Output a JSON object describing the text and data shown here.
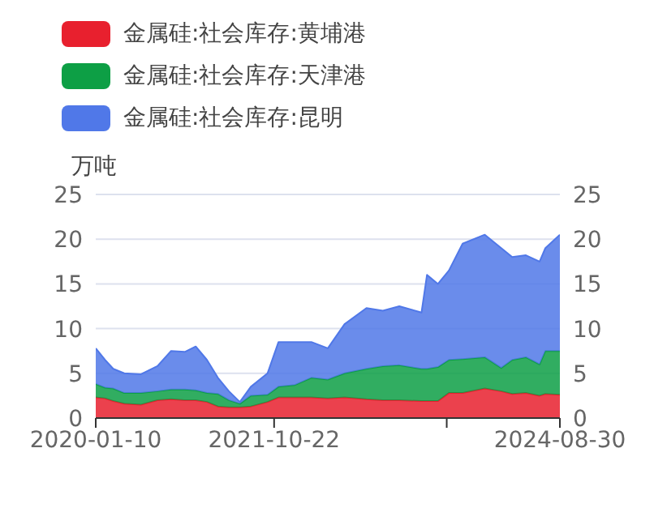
{
  "chart_data": {
    "type": "area",
    "stacked": true,
    "ylabel": "万吨",
    "x": [
      "2020-01-10",
      "2020-02-13",
      "2020-03-14",
      "2020-04-23",
      "2020-06-23",
      "2020-08-22",
      "2020-10-11",
      "2020-11-30",
      "2021-01-09",
      "2021-02-19",
      "2021-03-31",
      "2021-05-10",
      "2021-06-19",
      "2021-07-29",
      "2021-09-28",
      "2021-11-07",
      "2022-01-06",
      "2022-03-07",
      "2022-05-06",
      "2022-07-06",
      "2022-09-24",
      "2022-11-23",
      "2023-01-22",
      "2023-04-13",
      "2023-05-03",
      "2023-06-12",
      "2023-07-22",
      "2023-09-10",
      "2023-11-30",
      "2024-01-29",
      "2024-03-09",
      "2024-04-28",
      "2024-06-17",
      "2024-07-08",
      "2024-08-30"
    ],
    "series": [
      {
        "name": "金属硅:社会库存:黄埔港",
        "color": "#e8202e",
        "values": [
          2.3,
          2.2,
          1.9,
          1.6,
          1.5,
          2.0,
          2.1,
          2.0,
          2.0,
          1.8,
          1.3,
          1.2,
          1.2,
          1.3,
          1.8,
          2.3,
          2.3,
          2.3,
          2.2,
          2.3,
          2.1,
          2.0,
          2.0,
          1.9,
          1.9,
          1.9,
          2.8,
          2.8,
          3.3,
          3.0,
          2.7,
          2.8,
          2.5,
          2.7,
          2.6
        ]
      },
      {
        "name": "金属硅:社会库存:天津港",
        "color": "#0d9f45",
        "values": [
          1.5,
          1.2,
          1.4,
          1.2,
          1.3,
          1.0,
          1.1,
          1.2,
          1.1,
          1.0,
          1.4,
          0.8,
          0.4,
          1.2,
          0.8,
          1.2,
          1.4,
          2.2,
          2.1,
          2.7,
          3.4,
          3.8,
          3.9,
          3.6,
          3.6,
          3.8,
          3.7,
          3.8,
          3.5,
          2.6,
          3.8,
          4.0,
          3.5,
          4.8,
          4.9
        ]
      },
      {
        "name": "金属硅:社会库存:昆明",
        "color": "#5078e8",
        "values": [
          4.0,
          3.1,
          2.2,
          2.2,
          2.1,
          2.8,
          4.3,
          4.2,
          4.9,
          3.7,
          1.8,
          1.0,
          0.2,
          1.0,
          2.4,
          5.0,
          4.8,
          4.0,
          3.5,
          5.5,
          6.8,
          6.2,
          6.6,
          6.3,
          10.5,
          9.3,
          10.0,
          12.9,
          13.7,
          13.4,
          11.5,
          11.4,
          11.5,
          11.5,
          13.0
        ]
      }
    ],
    "xlim": [
      "2020-01-10",
      "2024-08-30"
    ],
    "xticks": [
      {
        "value": "2020-01-10",
        "label": "2020-01-10"
      },
      {
        "value": "2021-10-22",
        "label": "2021-10-22"
      },
      {
        "value": "2023-07-14",
        "label": null
      },
      {
        "value": "2024-08-30",
        "label": "2024-08-30"
      }
    ],
    "ylim": [
      0,
      25
    ],
    "yticks": [
      0,
      5,
      10,
      15,
      20,
      25
    ],
    "y2lim": [
      0,
      25
    ],
    "y2ticks": [
      0,
      5,
      10,
      15,
      20,
      25
    ],
    "grid": "y",
    "legend": "top left",
    "marker": "none"
  }
}
